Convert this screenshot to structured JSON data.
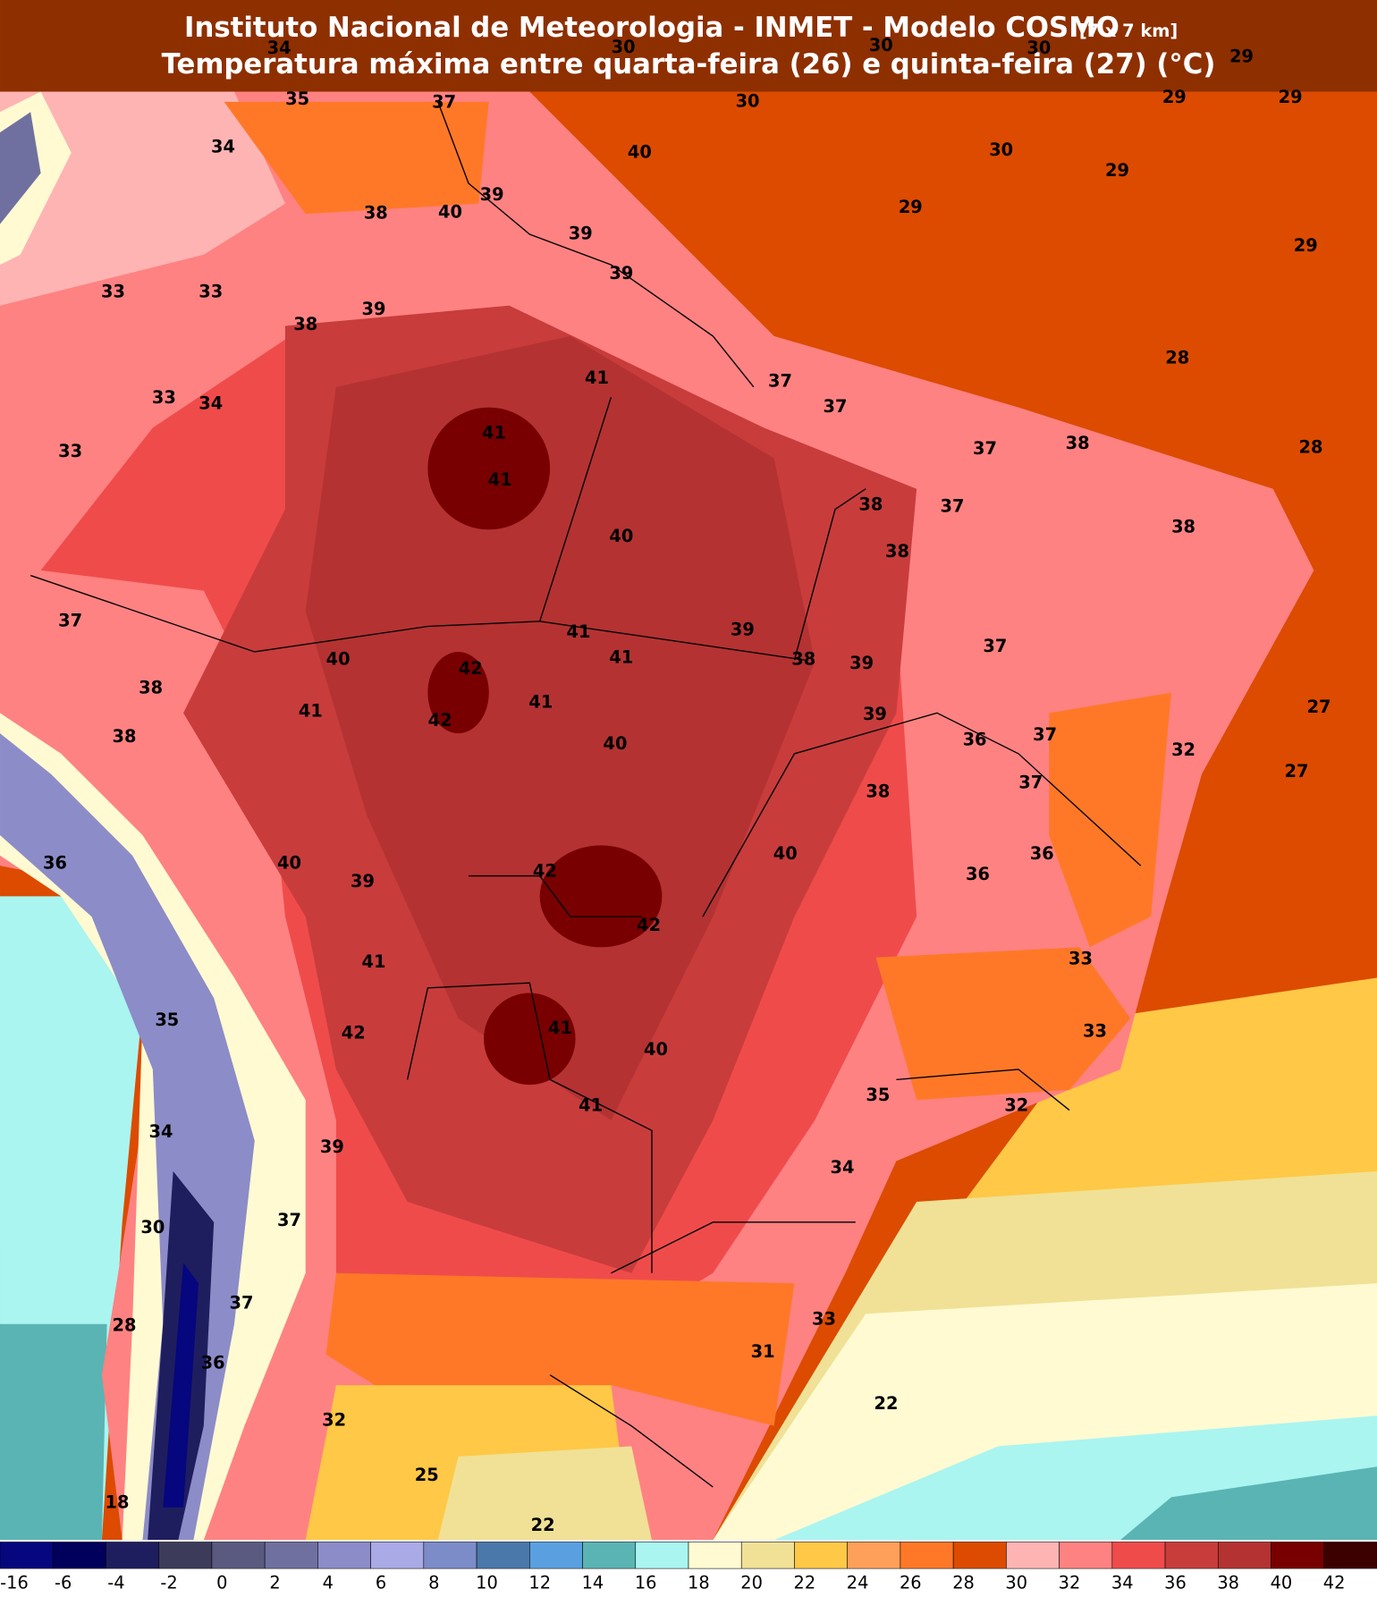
{
  "header": {
    "title": "Instituto Nacional de Meteorologia - INMET - Modelo COSMO",
    "resolution": "[7 x 7 km]",
    "subtitle": "Temperatura máxima entre quarta-feira (26) e quinta-feira (27) (°C)"
  },
  "map_labels": [
    34,
    30,
    30,
    30,
    29,
    35,
    37,
    30,
    29,
    29,
    34,
    40,
    30,
    29,
    39,
    38,
    40,
    29,
    39,
    29,
    39,
    33,
    33,
    39,
    38,
    28,
    41,
    37,
    33,
    34,
    37,
    41,
    37,
    38,
    28,
    33,
    41,
    38,
    37,
    40,
    38,
    38,
    37,
    41,
    39,
    37,
    40,
    41,
    38,
    39,
    42,
    38,
    41,
    41,
    39,
    27,
    42,
    38,
    36,
    37,
    40,
    32,
    37,
    27,
    38,
    40,
    36,
    36,
    40,
    39,
    42,
    36,
    42,
    41,
    33,
    35,
    42,
    41,
    40,
    33,
    35,
    41,
    32,
    34,
    39,
    34,
    37,
    30,
    37,
    28,
    33,
    31,
    36,
    22,
    32,
    25,
    18,
    22
  ],
  "colorbar": {
    "ticks": [
      -16,
      -6,
      -4,
      -2,
      0,
      2,
      4,
      6,
      8,
      10,
      12,
      14,
      16,
      18,
      20,
      22,
      24,
      26,
      28,
      30,
      32,
      34,
      36,
      38,
      40,
      42
    ],
    "colors": [
      "#06067e",
      "#00005c",
      "#1e1e5e",
      "#3c3c5a",
      "#5a5a80",
      "#7070a0",
      "#8c8cc8",
      "#aaaae6",
      "#7c8cc8",
      "#4a78aa",
      "#5aa0e0",
      "#5ab4b4",
      "#aaf5f0",
      "#fffad2",
      "#f0e196",
      "#ffc846",
      "#ffa05a",
      "#ff7828",
      "#dc4b00",
      "#ffb4b4",
      "#ff8282",
      "#f04b4b",
      "#c83c3c",
      "#b43232",
      "#780000",
      "#3c0000"
    ]
  }
}
